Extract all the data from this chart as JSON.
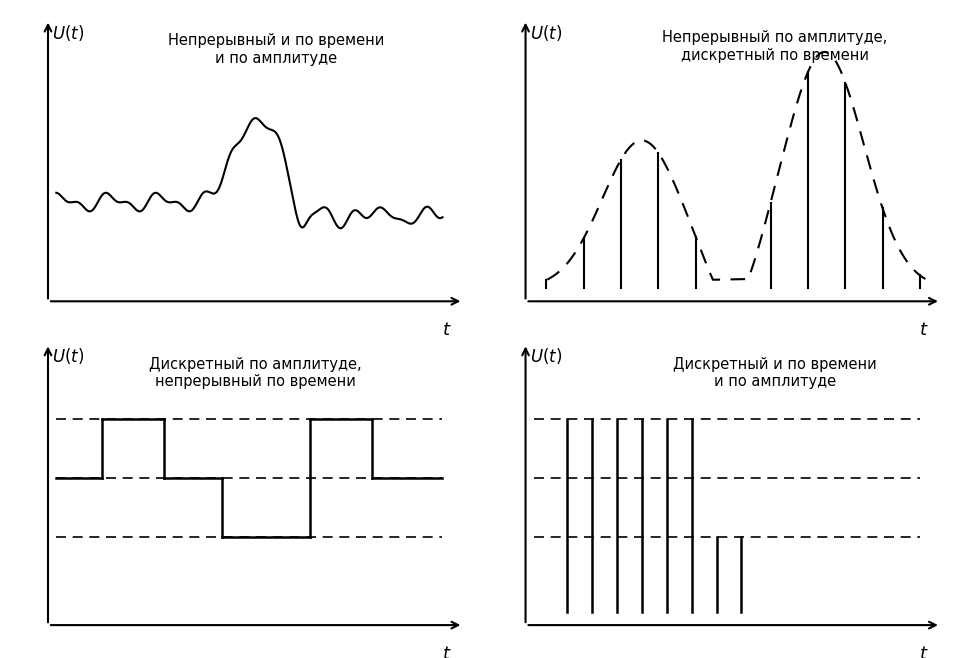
{
  "title1": "Непрерывный и по времени\nи по амплитуде",
  "title2": "Непрерывный по амплитуде,\nдискретный по времени",
  "title3": "Дискретный по амплитуде,\nнепрерывный по времени",
  "title4": "Дискретный и по времени\nи по амплитуде",
  "bg_color": "#ffffff",
  "line_color": "#000000"
}
